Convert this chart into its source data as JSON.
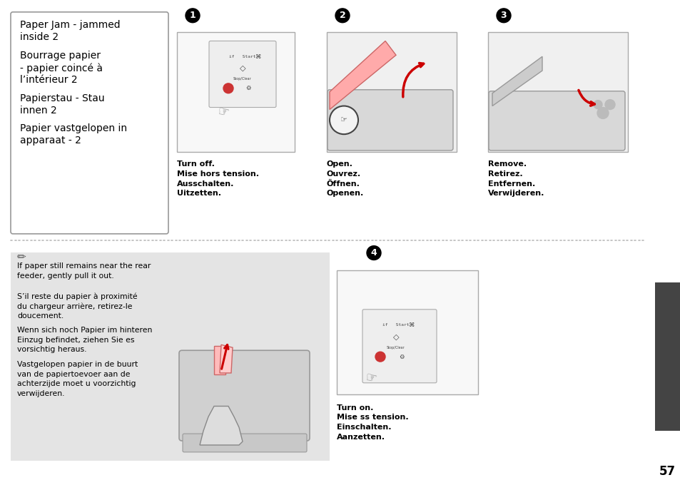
{
  "page_bg": "#ffffff",
  "page_number": "57",
  "sidebar_color": "#404040",
  "left_box_title_lines": [
    "Paper Jam - jammed",
    "inside 2"
  ],
  "left_box_text_blocks": [
    [
      "Bourrage papier",
      "- papier coincé à",
      "l’intérieur 2"
    ],
    [
      "Papierstau - Stau",
      "innen 2"
    ],
    [
      "Papier vastgelopen in",
      "apparaat - 2"
    ]
  ],
  "step1_num": "1",
  "step1_captions": [
    "Turn off.",
    "Mise hors tension.",
    "Ausschalten.",
    "Uitzetten."
  ],
  "step2_num": "2",
  "step2_captions": [
    "Open.",
    "Ouvrez.",
    "Öffnen.",
    "Openen."
  ],
  "step3_num": "3",
  "step3_captions": [
    "Remove.",
    "Retirez.",
    "Entfernen.",
    "Verwijderen."
  ],
  "note_texts": [
    "If paper still remains near the rear\nfeeder, gently pull it out.",
    "S’il reste du papier à proximité\ndu chargeur arrière, retirez-le\ndoucement.",
    "Wenn sich noch Papier im hinteren\nEinzug befindet, ziehen Sie es\nvorsichtig heraus.",
    "Vastgelopen papier in de buurt\nvan de papiertoevoer aan de\nachterzijde moet u voorzichtig\nverwijderen."
  ],
  "step4_num": "4",
  "step4_captions": [
    "Turn on.",
    "Mise ss tension.",
    "Einschalten.",
    "Aanzetten."
  ]
}
